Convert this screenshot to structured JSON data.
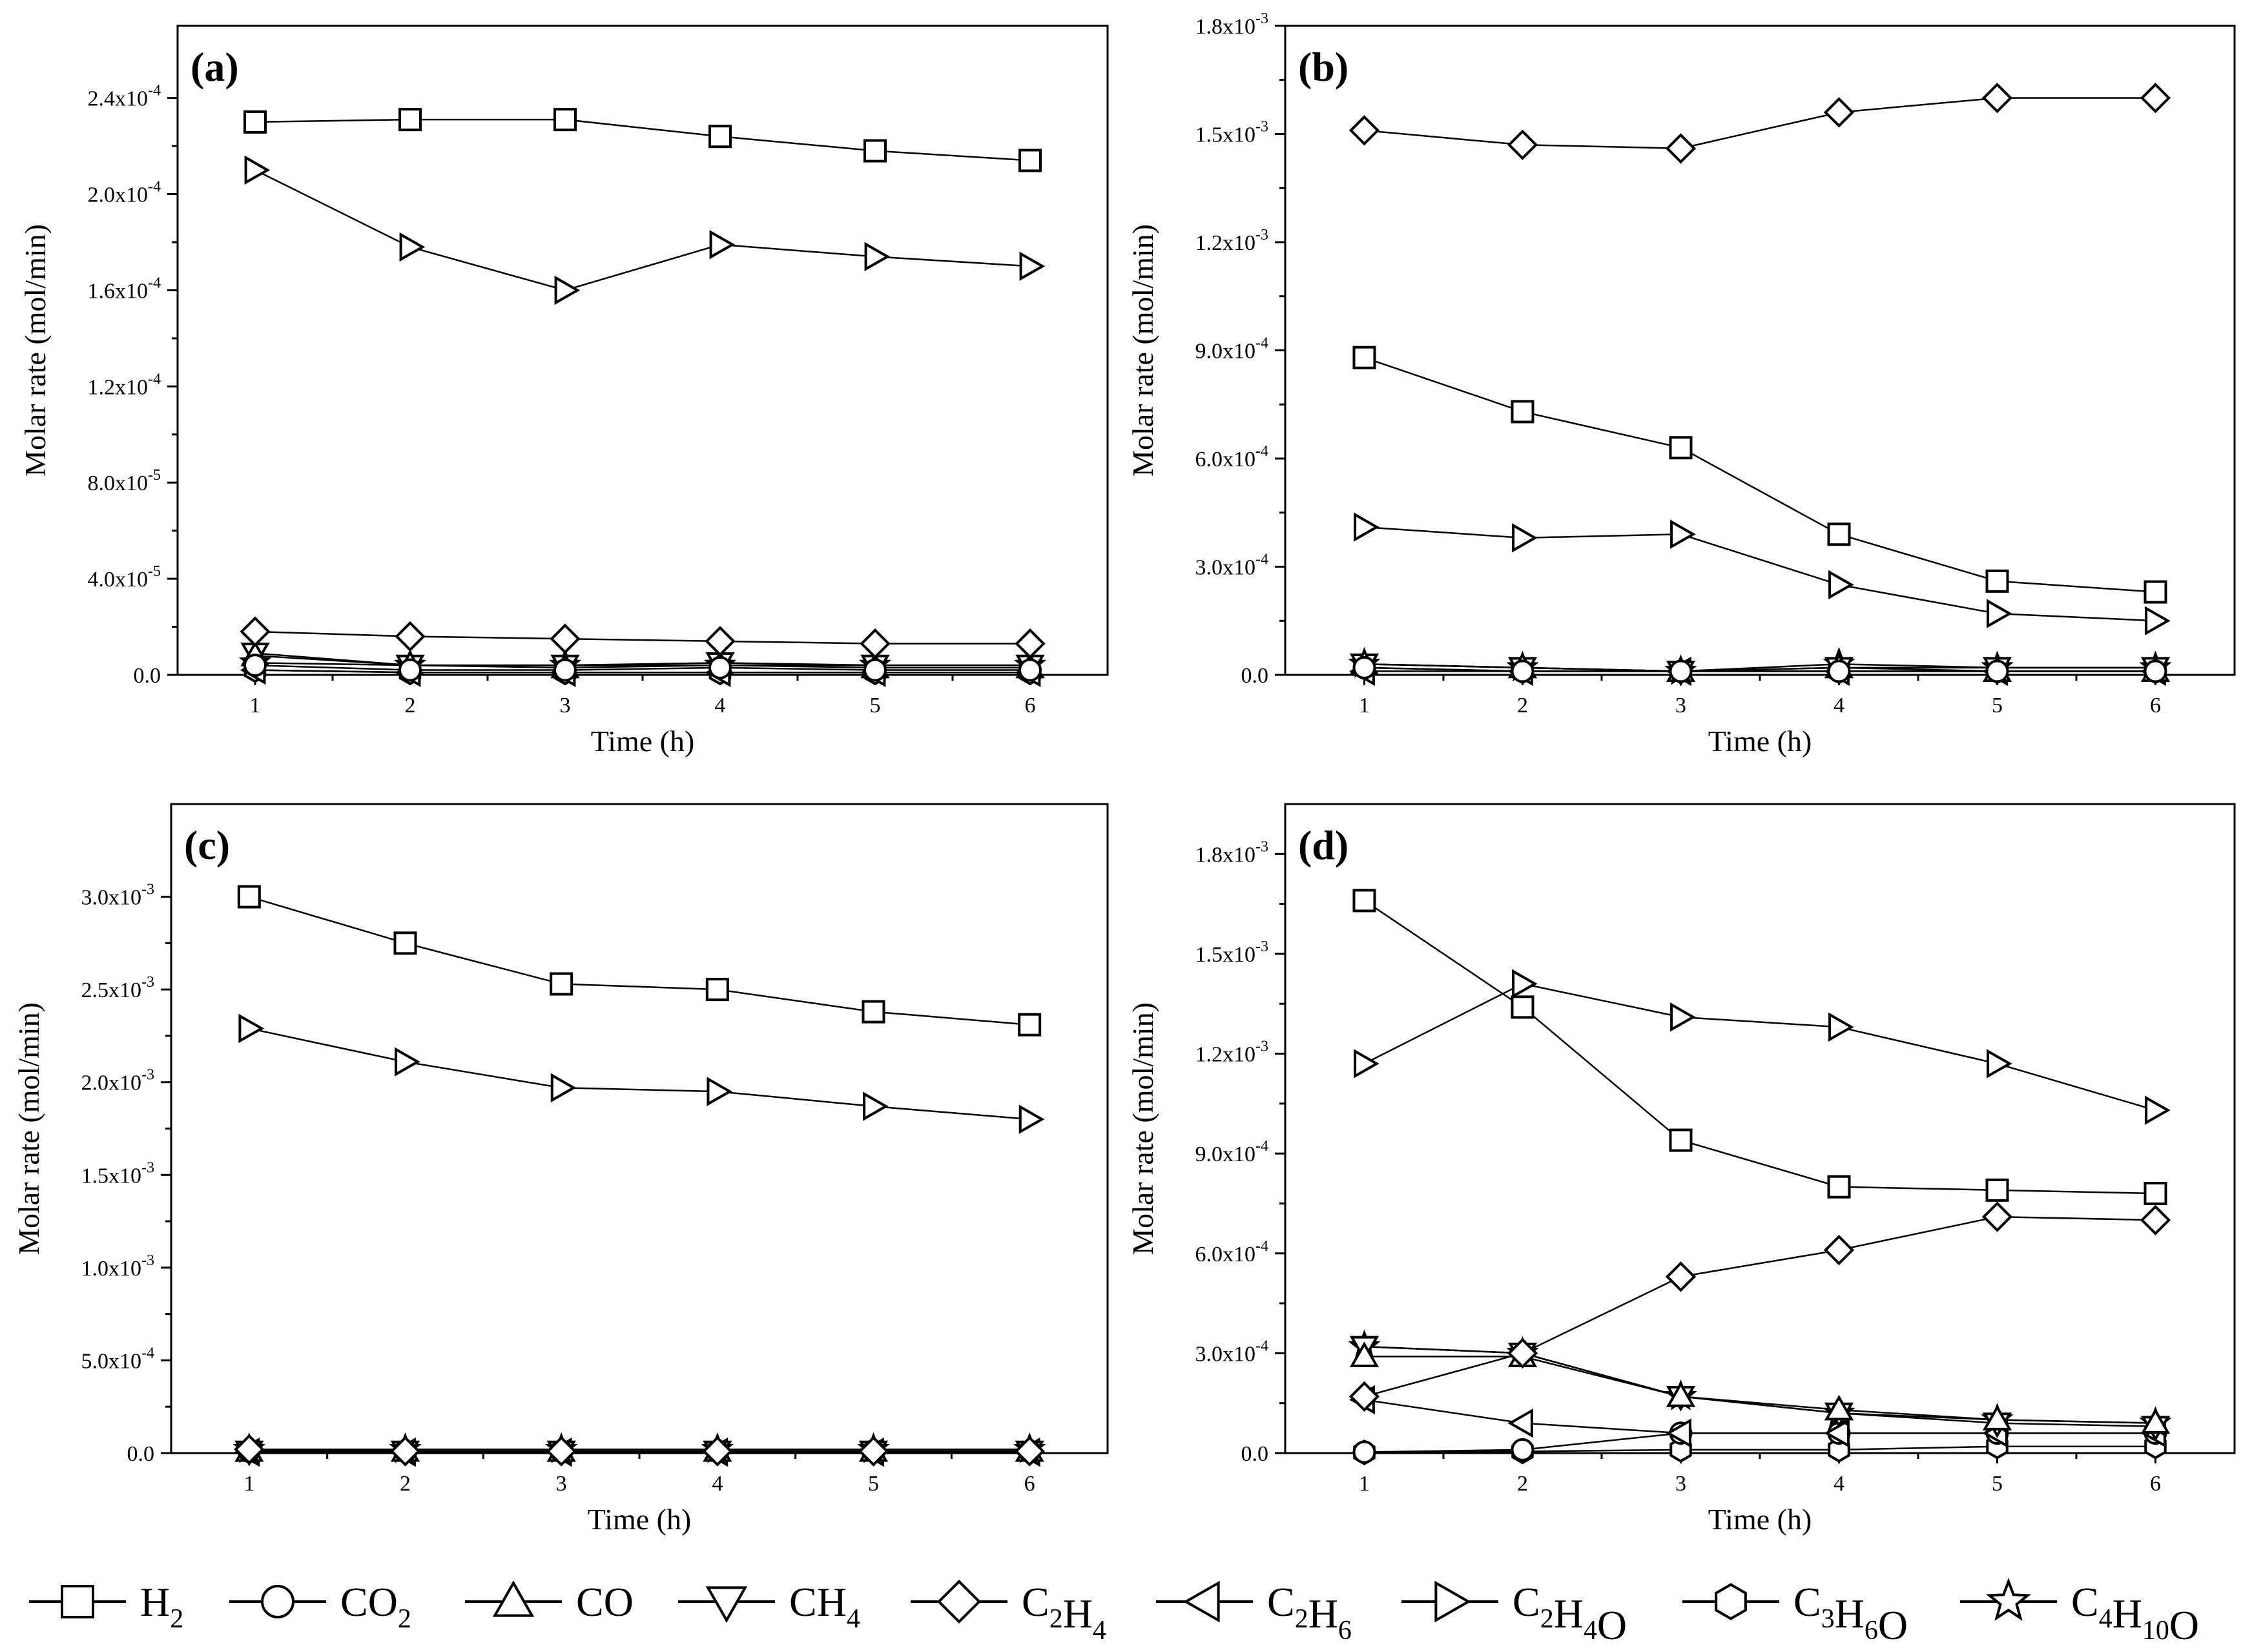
{
  "figure": {
    "ylabel": "Molar rate (mol/min)",
    "xlabel": "Time (h)"
  },
  "legend": [
    {
      "key": "H2",
      "base": "H",
      "sub": "2",
      "marker": "square"
    },
    {
      "key": "CO2",
      "base": "CO",
      "sub": "2",
      "marker": "circle"
    },
    {
      "key": "CO",
      "base": "CO",
      "sub": "",
      "marker": "triangle-up"
    },
    {
      "key": "CH4",
      "base": "CH",
      "sub": "4",
      "marker": "triangle-down"
    },
    {
      "key": "C2H4",
      "parts": [
        [
          "C",
          "2"
        ],
        [
          "H",
          "4"
        ]
      ],
      "marker": "diamond"
    },
    {
      "key": "C2H6",
      "parts": [
        [
          "C",
          "2"
        ],
        [
          "H",
          "6"
        ]
      ],
      "marker": "triangle-left"
    },
    {
      "key": "C2H4O",
      "parts": [
        [
          "C",
          "2"
        ],
        [
          "H",
          "4"
        ],
        [
          "O",
          ""
        ]
      ],
      "marker": "triangle-right"
    },
    {
      "key": "C3H6O",
      "parts": [
        [
          "C",
          "3"
        ],
        [
          "H",
          "6"
        ],
        [
          "O",
          ""
        ]
      ],
      "marker": "hexagon"
    },
    {
      "key": "C4H10O",
      "parts": [
        [
          "C",
          "4"
        ],
        [
          "H",
          "10"
        ],
        [
          "O",
          ""
        ]
      ],
      "marker": "star"
    }
  ],
  "chart_data": [
    {
      "panel": "(a)",
      "type": "line",
      "xlabel": "Time (h)",
      "ylabel": "Molar rate (mol/min)",
      "x": [
        1,
        2,
        3,
        4,
        5,
        6
      ],
      "xlim": [
        0.5,
        6.5
      ],
      "ylim": [
        0,
        0.00027
      ],
      "yticks": [
        {
          "v": 0,
          "m": "0.0",
          "e": ""
        },
        {
          "v": 4e-05,
          "m": "4.0x10",
          "e": "-5"
        },
        {
          "v": 8e-05,
          "m": "8.0x10",
          "e": "-5"
        },
        {
          "v": 0.00012,
          "m": "1.2x10",
          "e": "-4"
        },
        {
          "v": 0.00016,
          "m": "1.6x10",
          "e": "-4"
        },
        {
          "v": 0.0002,
          "m": "2.0x10",
          "e": "-4"
        },
        {
          "v": 0.00024,
          "m": "2.4x10",
          "e": "-4"
        }
      ],
      "series": [
        {
          "name": "H2",
          "values": [
            0.00023,
            0.000231,
            0.000231,
            0.000224,
            0.000218,
            0.000214
          ]
        },
        {
          "name": "C2H4O",
          "values": [
            0.00021,
            0.000178,
            0.00016,
            0.000179,
            0.000174,
            0.00017
          ]
        },
        {
          "name": "C2H4",
          "values": [
            1.8e-05,
            1.6e-05,
            1.5e-05,
            1.4e-05,
            1.3e-05,
            1.3e-05
          ]
        },
        {
          "name": "CO2",
          "values": [
            4e-06,
            2e-06,
            2e-06,
            3e-06,
            2e-06,
            2e-06
          ]
        },
        {
          "name": "CO",
          "values": [
            8e-06,
            4e-06,
            3e-06,
            4e-06,
            3e-06,
            3e-06
          ]
        },
        {
          "name": "CH4",
          "values": [
            9e-06,
            4e-06,
            4e-06,
            5e-06,
            4e-06,
            4e-06
          ]
        },
        {
          "name": "C2H6",
          "values": [
            2e-06,
            1e-06,
            1e-06,
            1e-06,
            1e-06,
            1e-06
          ]
        },
        {
          "name": "C3H6O",
          "values": [
            2e-06,
            1e-06,
            1e-06,
            1e-06,
            1e-06,
            1e-06
          ]
        },
        {
          "name": "C4H10O",
          "values": [
            5e-06,
            4e-06,
            4e-06,
            4e-06,
            4e-06,
            4e-06
          ]
        }
      ]
    },
    {
      "panel": "(b)",
      "type": "line",
      "xlabel": "Time (h)",
      "ylabel": "Molar rate (mol/min)",
      "x": [
        1,
        2,
        3,
        4,
        5,
        6
      ],
      "xlim": [
        0.5,
        6.5
      ],
      "ylim": [
        0,
        0.0018
      ],
      "yticks": [
        {
          "v": 0,
          "m": "0.0",
          "e": ""
        },
        {
          "v": 0.0003,
          "m": "3.0x10",
          "e": "-4"
        },
        {
          "v": 0.0006,
          "m": "6.0x10",
          "e": "-4"
        },
        {
          "v": 0.0009,
          "m": "9.0x10",
          "e": "-4"
        },
        {
          "v": 0.0012,
          "m": "1.2x10",
          "e": "-3"
        },
        {
          "v": 0.0015,
          "m": "1.5x10",
          "e": "-3"
        },
        {
          "v": 0.0018,
          "m": "1.8x10",
          "e": "-3"
        }
      ],
      "series": [
        {
          "name": "C2H4",
          "values": [
            0.00151,
            0.00147,
            0.00146,
            0.00156,
            0.0016,
            0.0016
          ]
        },
        {
          "name": "H2",
          "values": [
            0.00088,
            0.00073,
            0.00063,
            0.00039,
            0.00026,
            0.00023
          ]
        },
        {
          "name": "C2H4O",
          "values": [
            0.00041,
            0.00038,
            0.00039,
            0.00025,
            0.00017,
            0.00015
          ]
        },
        {
          "name": "CO2",
          "values": [
            2e-05,
            1e-05,
            1e-05,
            1e-05,
            1e-05,
            1e-05
          ]
        },
        {
          "name": "CO",
          "values": [
            3e-05,
            2e-05,
            1e-05,
            2e-05,
            1e-05,
            1e-05
          ]
        },
        {
          "name": "CH4",
          "values": [
            3e-05,
            2e-05,
            1e-05,
            2e-05,
            2e-05,
            2e-05
          ]
        },
        {
          "name": "C2H6",
          "values": [
            1e-05,
            1e-05,
            1e-05,
            1e-05,
            1e-05,
            1e-05
          ]
        },
        {
          "name": "C3H6O",
          "values": [
            2e-05,
            1e-05,
            1e-05,
            1e-05,
            1e-05,
            1e-05
          ]
        },
        {
          "name": "C4H10O",
          "values": [
            3e-05,
            2e-05,
            1e-05,
            3e-05,
            2e-05,
            2e-05
          ]
        }
      ]
    },
    {
      "panel": "(c)",
      "type": "line",
      "xlabel": "Time (h)",
      "ylabel": "Molar rate (mol/min)",
      "x": [
        1,
        2,
        3,
        4,
        5,
        6
      ],
      "xlim": [
        0.5,
        6.5
      ],
      "ylim": [
        0,
        0.0035
      ],
      "yticks": [
        {
          "v": 0,
          "m": "0.0",
          "e": ""
        },
        {
          "v": 0.0005,
          "m": "5.0x10",
          "e": "-4"
        },
        {
          "v": 0.001,
          "m": "1.0x10",
          "e": "-3"
        },
        {
          "v": 0.0015,
          "m": "1.5x10",
          "e": "-3"
        },
        {
          "v": 0.002,
          "m": "2.0x10",
          "e": "-3"
        },
        {
          "v": 0.0025,
          "m": "2.5x10",
          "e": "-3"
        },
        {
          "v": 0.003,
          "m": "3.0x10",
          "e": "-3"
        }
      ],
      "series": [
        {
          "name": "H2",
          "values": [
            0.003,
            0.00275,
            0.00253,
            0.0025,
            0.00238,
            0.00231
          ]
        },
        {
          "name": "C2H4O",
          "values": [
            0.00229,
            0.00211,
            0.00197,
            0.00195,
            0.00187,
            0.0018
          ]
        },
        {
          "name": "C2H4",
          "values": [
            2e-05,
            1e-05,
            1e-05,
            1e-05,
            1e-05,
            1e-05
          ]
        },
        {
          "name": "CO2",
          "values": [
            1e-05,
            1e-05,
            1e-05,
            1e-05,
            1e-05,
            1e-05
          ]
        },
        {
          "name": "CO",
          "values": [
            1e-05,
            1e-05,
            1e-05,
            1e-05,
            1e-05,
            1e-05
          ]
        },
        {
          "name": "CH4",
          "values": [
            1e-05,
            1e-05,
            1e-05,
            1e-05,
            1e-05,
            1e-05
          ]
        },
        {
          "name": "C2H6",
          "values": [
            5e-06,
            5e-06,
            5e-06,
            5e-06,
            5e-06,
            5e-06
          ]
        },
        {
          "name": "C3H6O",
          "values": [
            1e-05,
            1e-05,
            1e-05,
            1e-05,
            1e-05,
            1e-05
          ]
        },
        {
          "name": "C4H10O",
          "values": [
            2e-05,
            2e-05,
            2e-05,
            2e-05,
            2e-05,
            2e-05
          ]
        }
      ]
    },
    {
      "panel": "(d)",
      "type": "line",
      "xlabel": "Time (h)",
      "ylabel": "Molar rate (mol/min)",
      "x": [
        1,
        2,
        3,
        4,
        5,
        6
      ],
      "xlim": [
        0.5,
        6.5
      ],
      "ylim": [
        0,
        0.00195
      ],
      "yticks": [
        {
          "v": 0,
          "m": "0.0",
          "e": ""
        },
        {
          "v": 0.0003,
          "m": "3.0x10",
          "e": "-4"
        },
        {
          "v": 0.0006,
          "m": "6.0x10",
          "e": "-4"
        },
        {
          "v": 0.0009,
          "m": "9.0x10",
          "e": "-4"
        },
        {
          "v": 0.0012,
          "m": "1.2x10",
          "e": "-3"
        },
        {
          "v": 0.0015,
          "m": "1.5x10",
          "e": "-3"
        },
        {
          "v": 0.0018,
          "m": "1.8x10",
          "e": "-3"
        }
      ],
      "series": [
        {
          "name": "H2",
          "values": [
            0.00166,
            0.00134,
            0.00094,
            0.0008,
            0.00079,
            0.00078
          ]
        },
        {
          "name": "C2H4O",
          "values": [
            0.00117,
            0.00141,
            0.00131,
            0.00128,
            0.00117,
            0.00103
          ]
        },
        {
          "name": "C2H4",
          "values": [
            0.00017,
            0.0003,
            0.00053,
            0.00061,
            0.00071,
            0.0007
          ]
        },
        {
          "name": "CO",
          "values": [
            0.00029,
            0.00029,
            0.00017,
            0.00013,
            0.0001,
            9e-05
          ]
        },
        {
          "name": "CH4",
          "values": [
            0.00032,
            0.0003,
            0.00017,
            0.00012,
            9e-05,
            8e-05
          ]
        },
        {
          "name": "C4H10O",
          "values": [
            0.00032,
            0.0003,
            0.00017,
            0.00012,
            0.0001,
            9e-05
          ]
        },
        {
          "name": "C2H6",
          "values": [
            0.00016,
            9e-05,
            6e-05,
            6e-05,
            6e-05,
            6e-05
          ]
        },
        {
          "name": "CO2",
          "values": [
            3e-06,
            1e-05,
            6e-05,
            6e-05,
            6e-05,
            6e-05
          ]
        },
        {
          "name": "C3H6O",
          "values": [
            2e-06,
            5e-06,
            1e-05,
            1e-05,
            2e-05,
            2e-05
          ]
        }
      ]
    }
  ]
}
